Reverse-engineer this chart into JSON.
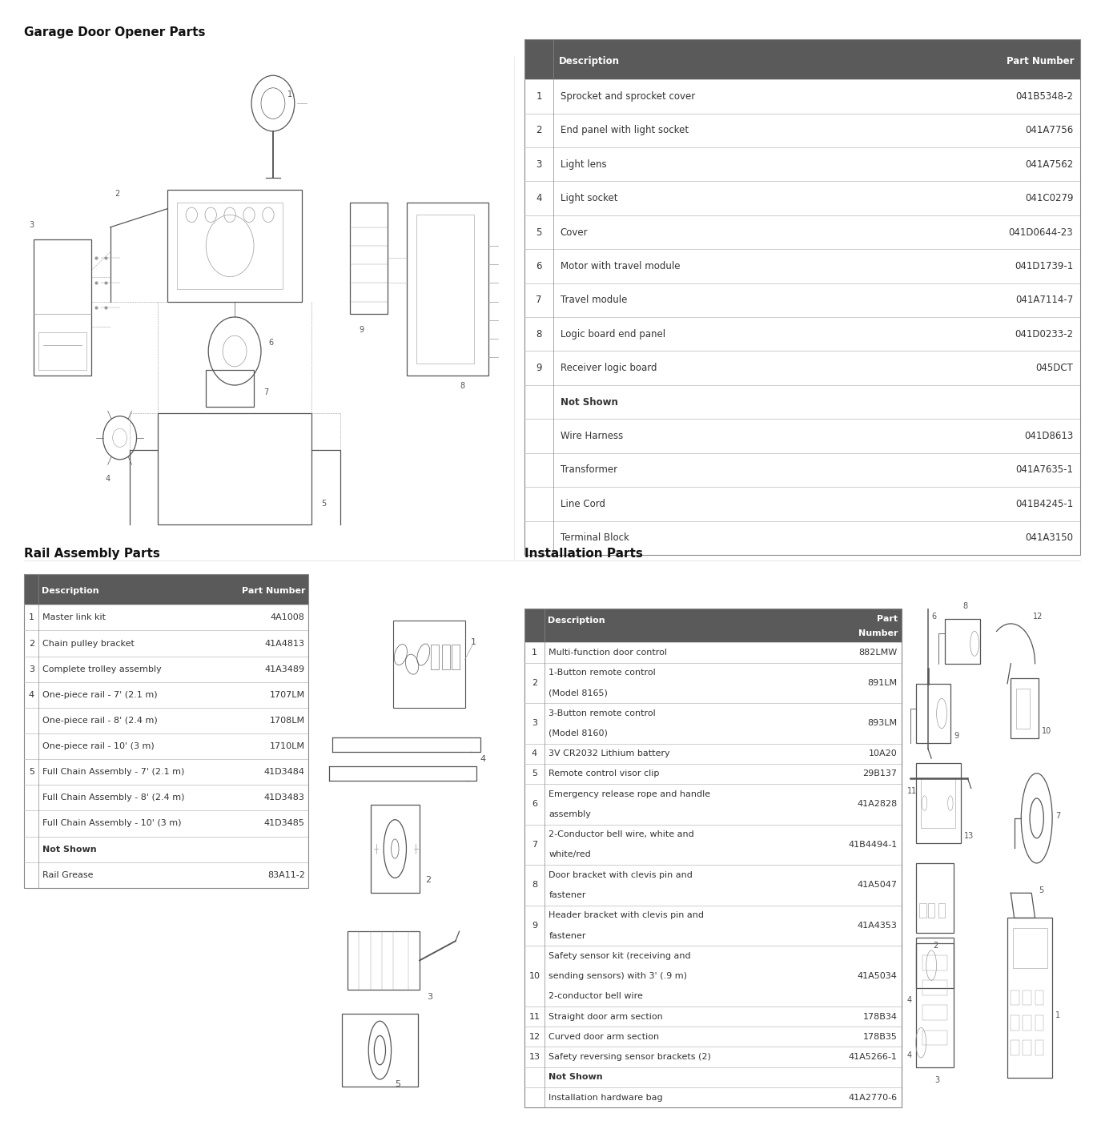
{
  "title_opener": "Garage Door Opener Parts",
  "title_rail": "Rail Assembly Parts",
  "title_install": "Installation Parts",
  "bg_color": "#ffffff",
  "header_bg": "#5a5a5a",
  "header_text_color": "#ffffff",
  "row_line_color": "#bbbbbb",
  "table_border_color": "#888888",
  "text_color": "#333333",
  "bold_color": "#111111",
  "opener_parts": [
    [
      "1",
      "Sprocket and sprocket cover",
      "041B5348-2"
    ],
    [
      "2",
      "End panel with light socket",
      "041A7756"
    ],
    [
      "3",
      "Light lens",
      "041A7562"
    ],
    [
      "4",
      "Light socket",
      "041C0279"
    ],
    [
      "5",
      "Cover",
      "041D0644-23"
    ],
    [
      "6",
      "Motor with travel module",
      "041D1739-1"
    ],
    [
      "7",
      "Travel module",
      "041A7114-7"
    ],
    [
      "8",
      "Logic board end panel",
      "041D0233-2"
    ],
    [
      "9",
      "Receiver logic board",
      "045DCT"
    ]
  ],
  "opener_not_shown": [
    [
      "",
      "Wire Harness",
      "041D8613"
    ],
    [
      "",
      "Transformer",
      "041A7635-1"
    ],
    [
      "",
      "Line Cord",
      "041B4245-1"
    ],
    [
      "",
      "Terminal Block",
      "041A3150"
    ]
  ],
  "rail_parts": [
    [
      "1",
      "Master link kit",
      "4A1008"
    ],
    [
      "2",
      "Chain pulley bracket",
      "41A4813"
    ],
    [
      "3",
      "Complete trolley assembly",
      "41A3489"
    ],
    [
      "4",
      "One-piece rail - 7' (2.1 m)",
      "1707LM"
    ],
    [
      "",
      "One-piece rail - 8' (2.4 m)",
      "1708LM"
    ],
    [
      "",
      "One-piece rail - 10' (3 m)",
      "1710LM"
    ],
    [
      "5",
      "Full Chain Assembly - 7' (2.1 m)",
      "41D3484"
    ],
    [
      "",
      "Full Chain Assembly - 8' (2.4 m)",
      "41D3483"
    ],
    [
      "",
      "Full Chain Assembly - 10' (3 m)",
      "41D3485"
    ]
  ],
  "rail_not_shown": [
    [
      "",
      "Rail Grease",
      "83A11-2"
    ]
  ],
  "install_parts": [
    [
      "1",
      "Multi-function door control",
      "882LMW"
    ],
    [
      "2",
      "1-Button remote control\n(Model 8165)",
      "891LM"
    ],
    [
      "3",
      "3-Button remote control\n(Model 8160)",
      "893LM"
    ],
    [
      "4",
      "3V CR2032 Lithium battery",
      "10A20"
    ],
    [
      "5",
      "Remote control visor clip",
      "29B137"
    ],
    [
      "6",
      "Emergency release rope and handle\nassembly",
      "41A2828"
    ],
    [
      "7",
      "2-Conductor bell wire, white and\nwhite/red",
      "41B4494-1"
    ],
    [
      "8",
      "Door bracket with clevis pin and\nfastener",
      "41A5047"
    ],
    [
      "9",
      "Header bracket with clevis pin and\nfastener",
      "41A4353"
    ],
    [
      "10",
      "Safety sensor kit (receiving and\nsending sensors) with 3' (.9 m)\n2-conductor bell wire",
      "41A5034"
    ],
    [
      "11",
      "Straight door arm section",
      "178B34"
    ],
    [
      "12",
      "Curved door arm section",
      "178B35"
    ],
    [
      "13",
      "Safety reversing sensor brackets (2)",
      "41A5266-1"
    ]
  ],
  "install_not_shown": [
    [
      "",
      "Installation hardware bag",
      "41A2770-6"
    ]
  ]
}
